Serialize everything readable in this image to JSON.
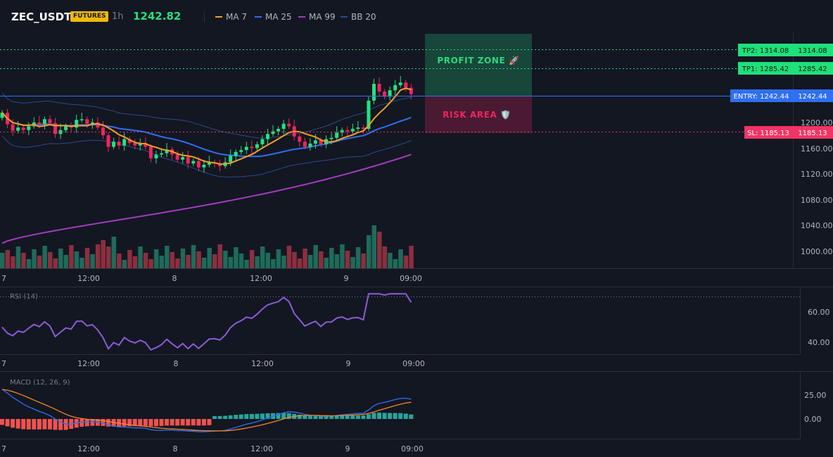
{
  "header": {
    "symbol": "ZEC_USDT",
    "badge": "FUTURES",
    "timeframe": "1h",
    "last_price": "1242.82",
    "indicators": [
      {
        "label": "MA 7",
        "color": "#f59e2a"
      },
      {
        "label": "MA 25",
        "color": "#2f6ff0"
      },
      {
        "label": "MA 99",
        "color": "#a43bc2"
      },
      {
        "label": "BB 20",
        "color": "#2a4a8a"
      }
    ]
  },
  "zones": {
    "profit_label": "PROFIT ZONE 🚀",
    "risk_label": "RISK AREA 🛡️"
  },
  "levels": [
    {
      "name": "tp2",
      "tag": "TP2: 1314.08",
      "axis_label": "1314.08",
      "price": 1314.08,
      "color": "#2bd97c",
      "style": "dotted"
    },
    {
      "name": "tp1",
      "tag": "TP1: 1285.42",
      "axis_label": "1285.42",
      "price": 1285.42,
      "color": "#2bd97c",
      "style": "dotted"
    },
    {
      "name": "entry",
      "tag": "ENTRY: 1242.44",
      "axis_label": "1242.44",
      "price": 1242.44,
      "color": "#2f6ff0",
      "style": "solid"
    },
    {
      "name": "sl",
      "tag": "SL: 1185.13",
      "axis_label": "1185.13",
      "price": 1185.13,
      "color": "#f23466",
      "style": "dotted"
    }
  ],
  "price_axis": [
    "1200.00",
    "1160.00",
    "1120.00",
    "1080.00",
    "1040.00",
    "1000.00"
  ],
  "time_axis": [
    "7",
    "12:00",
    "8",
    "12:00",
    "9",
    "09:00"
  ],
  "rsi": {
    "label": "RSI (14)",
    "axis": [
      "60.00",
      "40.00"
    ]
  },
  "macd": {
    "label": "MACD (12, 26, 9)",
    "axis": [
      "25.00",
      "0.00"
    ]
  },
  "colors": {
    "up": "#26e07f",
    "down": "#f0245e",
    "vol_up": "#1e6b5a",
    "vol_down": "#8c2f3e",
    "rsi": "#8b5cd6",
    "macd": "#2f6ff0",
    "signal": "#f5842a",
    "hist_up": "#26a69a",
    "hist_down": "#ef5350"
  }
}
